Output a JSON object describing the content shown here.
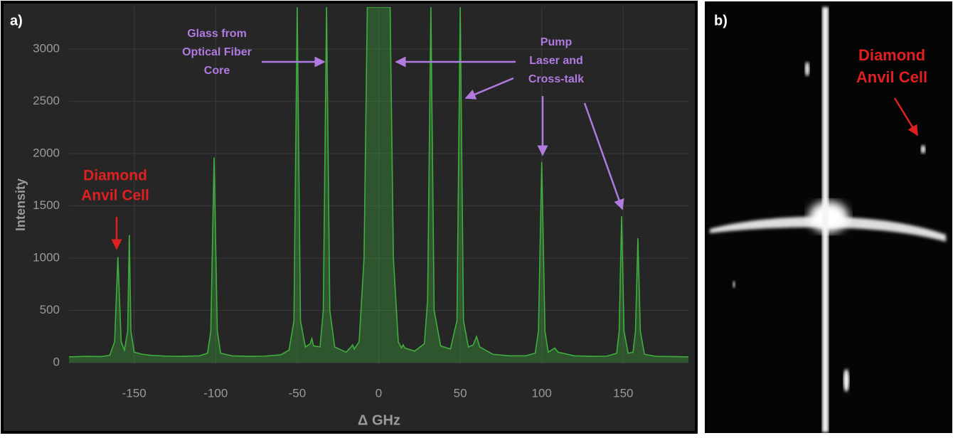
{
  "chart_data": {
    "type": "line",
    "panel_label": "a)",
    "x_label": "Δ GHz",
    "y_label": "Intensity",
    "xlim": [
      -190,
      190
    ],
    "ylim": [
      0,
      3400
    ],
    "xticks": [
      -150,
      -100,
      -50,
      0,
      50,
      100,
      150
    ],
    "yticks": [
      0,
      500,
      1000,
      1500,
      2000,
      2500,
      3000
    ],
    "grid": true,
    "series": [
      {
        "color": "#3fae3f",
        "x": [
          -190,
          -180,
          -170,
          -165,
          -162,
          -160,
          -158,
          -156,
          -154,
          -153,
          -152,
          -150,
          -145,
          -140,
          -130,
          -120,
          -110,
          -105,
          -103,
          -101,
          -99,
          -97,
          -90,
          -80,
          -70,
          -60,
          -55,
          -52,
          -50,
          -48,
          -45,
          -42,
          -41,
          -40,
          -36,
          -34,
          -32,
          -30,
          -27,
          -20,
          -17,
          -16,
          -15,
          -12,
          -9,
          -7,
          7,
          9,
          12,
          14,
          15,
          16,
          22,
          28,
          30,
          32,
          34,
          38,
          44,
          48,
          50,
          52,
          55,
          58,
          60,
          62,
          70,
          80,
          90,
          96,
          98,
          100,
          102,
          104,
          108,
          110,
          120,
          130,
          140,
          146,
          147.5,
          149,
          150.5,
          153,
          156,
          157.5,
          159,
          160.5,
          163,
          170,
          180,
          190
        ],
        "values": [
          55,
          60,
          58,
          70,
          200,
          1010,
          200,
          120,
          300,
          1220,
          300,
          100,
          80,
          70,
          62,
          60,
          65,
          90,
          300,
          1960,
          300,
          90,
          65,
          60,
          62,
          75,
          120,
          400,
          3400,
          400,
          150,
          180,
          230,
          160,
          150,
          500,
          3400,
          500,
          150,
          100,
          150,
          170,
          130,
          200,
          1000,
          3400,
          3400,
          1000,
          200,
          140,
          170,
          140,
          110,
          180,
          600,
          3400,
          500,
          160,
          130,
          400,
          3400,
          400,
          150,
          170,
          250,
          150,
          80,
          65,
          65,
          90,
          300,
          1920,
          300,
          100,
          140,
          100,
          65,
          60,
          62,
          90,
          300,
          1400,
          300,
          90,
          100,
          300,
          1190,
          300,
          80,
          60,
          58,
          55
        ]
      }
    ],
    "annotations": [
      {
        "lines": [
          "Diamond",
          "Anvil Cell"
        ],
        "color": "#e02020"
      },
      {
        "lines": [
          "Glass from",
          "Optical Fiber",
          "Core"
        ],
        "color": "#b07ae0"
      },
      {
        "lines": [
          "Pump",
          "Laser and",
          "Cross-talk"
        ],
        "color": "#b07ae0"
      }
    ]
  },
  "image_panel": {
    "label": "b)",
    "annotation": {
      "lines": [
        "Diamond",
        "Anvil Cell"
      ],
      "color": "#e02020"
    }
  }
}
